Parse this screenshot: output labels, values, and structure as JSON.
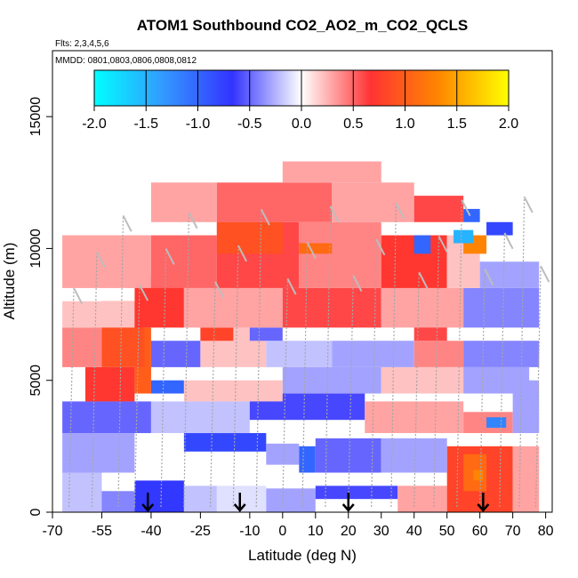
{
  "chart_data": {
    "type": "heatmap",
    "title": "ATOM1 Southbound CO2_AO2_m_CO2_QCLS",
    "flights_label": "Flts: 2,3,4,5,6",
    "dates_label": "MMDD: 0801,0803,0806,0808,0812",
    "xlabel": "Latitude (deg N)",
    "ylabel": "Altitude (m)",
    "xlim": [
      -70,
      82
    ],
    "ylim": [
      0,
      17500
    ],
    "x_ticks": [
      -70,
      -55,
      -40,
      -25,
      -10,
      0,
      10,
      20,
      30,
      40,
      50,
      60,
      70,
      80
    ],
    "y_ticks": [
      0,
      5000,
      10000,
      15000
    ],
    "colorbar": {
      "range": [
        -2.0,
        2.0
      ],
      "ticks": [
        "-2.0",
        "-1.5",
        "-1.0",
        "-0.5",
        "0.0",
        "0.5",
        "1.0",
        "1.5",
        "2.0"
      ],
      "stops": [
        "#00ffff",
        "#3399ff",
        "#3333ff",
        "#ffffff",
        "#ff3333",
        "#ff8800",
        "#ffff00"
      ]
    },
    "arrows_latitude": [
      -41,
      -13,
      20,
      61
    ],
    "cells": [
      {
        "lat": [
          -67,
          -55
        ],
        "alt": [
          0,
          1500
        ],
        "v": -0.2
      },
      {
        "lat": [
          -55,
          -45
        ],
        "alt": [
          0,
          800
        ],
        "v": -0.4
      },
      {
        "lat": [
          -45,
          -30
        ],
        "alt": [
          0,
          1200
        ],
        "v": -0.7
      },
      {
        "lat": [
          -30,
          -20
        ],
        "alt": [
          0,
          1000
        ],
        "v": -0.2
      },
      {
        "lat": [
          -20,
          -5
        ],
        "alt": [
          0,
          1000
        ],
        "v": -0.1
      },
      {
        "lat": [
          -5,
          10
        ],
        "alt": [
          0,
          900
        ],
        "v": -0.3
      },
      {
        "lat": [
          10,
          35
        ],
        "alt": [
          500,
          1000
        ],
        "v": -0.6
      },
      {
        "lat": [
          35,
          50
        ],
        "alt": [
          0,
          1000
        ],
        "v": 0.3
      },
      {
        "lat": [
          50,
          70
        ],
        "alt": [
          0,
          2500
        ],
        "v": 0.8
      },
      {
        "lat": [
          55,
          62
        ],
        "alt": [
          800,
          2200
        ],
        "v": 1.1
      },
      {
        "lat": [
          58,
          61
        ],
        "alt": [
          1200,
          1600
        ],
        "v": 1.3
      },
      {
        "lat": [
          70,
          78
        ],
        "alt": [
          0,
          2500
        ],
        "v": 0.3
      },
      {
        "lat": [
          -67,
          -45
        ],
        "alt": [
          1500,
          3000
        ],
        "v": -0.3
      },
      {
        "lat": [
          -30,
          -5
        ],
        "alt": [
          2300,
          3000
        ],
        "v": -0.8
      },
      {
        "lat": [
          -5,
          5
        ],
        "alt": [
          1800,
          2600
        ],
        "v": -0.3
      },
      {
        "lat": [
          5,
          10
        ],
        "alt": [
          1500,
          2500
        ],
        "v": -1.0
      },
      {
        "lat": [
          10,
          30
        ],
        "alt": [
          1500,
          2800
        ],
        "v": -0.5
      },
      {
        "lat": [
          30,
          50
        ],
        "alt": [
          1500,
          2800
        ],
        "v": -0.3
      },
      {
        "lat": [
          -67,
          -40
        ],
        "alt": [
          3000,
          4200
        ],
        "v": -0.5
      },
      {
        "lat": [
          -40,
          -10
        ],
        "alt": [
          3000,
          4200
        ],
        "v": -0.2
      },
      {
        "lat": [
          -10,
          25
        ],
        "alt": [
          3500,
          4500
        ],
        "v": -0.6
      },
      {
        "lat": [
          25,
          55
        ],
        "alt": [
          3000,
          4200
        ],
        "v": 0.3
      },
      {
        "lat": [
          55,
          70
        ],
        "alt": [
          3000,
          3800
        ],
        "v": 0.4
      },
      {
        "lat": [
          62,
          68
        ],
        "alt": [
          3200,
          3600
        ],
        "v": -1.2
      },
      {
        "lat": [
          70,
          78
        ],
        "alt": [
          3000,
          5000
        ],
        "v": -0.3
      },
      {
        "lat": [
          -60,
          -45
        ],
        "alt": [
          4200,
          5500
        ],
        "v": 0.7
      },
      {
        "lat": [
          -45,
          -40
        ],
        "alt": [
          4500,
          7000
        ],
        "v": 1.0
      },
      {
        "lat": [
          -40,
          -30
        ],
        "alt": [
          4500,
          5000
        ],
        "v": -1.0
      },
      {
        "lat": [
          -30,
          0
        ],
        "alt": [
          4200,
          5000
        ],
        "v": 0.2
      },
      {
        "lat": [
          0,
          30
        ],
        "alt": [
          4500,
          5500
        ],
        "v": -0.3
      },
      {
        "lat": [
          30,
          55
        ],
        "alt": [
          4500,
          5500
        ],
        "v": 0.2
      },
      {
        "lat": [
          55,
          75
        ],
        "alt": [
          4500,
          5500
        ],
        "v": -0.3
      },
      {
        "lat": [
          -67,
          -55
        ],
        "alt": [
          5500,
          7000
        ],
        "v": 0.4
      },
      {
        "lat": [
          -55,
          -42
        ],
        "alt": [
          5500,
          8000
        ],
        "v": 0.9
      },
      {
        "lat": [
          -40,
          -25
        ],
        "alt": [
          5500,
          6500
        ],
        "v": -0.5
      },
      {
        "lat": [
          -25,
          -5
        ],
        "alt": [
          5500,
          7000
        ],
        "v": 0.2
      },
      {
        "lat": [
          -5,
          15
        ],
        "alt": [
          5500,
          6500
        ],
        "v": -0.2
      },
      {
        "lat": [
          15,
          40
        ],
        "alt": [
          5500,
          6500
        ],
        "v": -0.3
      },
      {
        "lat": [
          40,
          55
        ],
        "alt": [
          5500,
          6500
        ],
        "v": 0.4
      },
      {
        "lat": [
          55,
          78
        ],
        "alt": [
          5500,
          6500
        ],
        "v": -0.4
      },
      {
        "lat": [
          -25,
          -15
        ],
        "alt": [
          6500,
          7000
        ],
        "v": 0.8
      },
      {
        "lat": [
          -10,
          0
        ],
        "alt": [
          6500,
          7000
        ],
        "v": -0.5
      },
      {
        "lat": [
          40,
          50
        ],
        "alt": [
          6500,
          7200
        ],
        "v": 0.6
      },
      {
        "lat": [
          -67,
          -45
        ],
        "alt": [
          7000,
          8000
        ],
        "v": 0.2
      },
      {
        "lat": [
          -45,
          -30
        ],
        "alt": [
          7000,
          9000
        ],
        "v": 0.7
      },
      {
        "lat": [
          -30,
          0
        ],
        "alt": [
          7000,
          8500
        ],
        "v": 0.3
      },
      {
        "lat": [
          0,
          30
        ],
        "alt": [
          7000,
          8500
        ],
        "v": 0.6
      },
      {
        "lat": [
          30,
          55
        ],
        "alt": [
          7000,
          8500
        ],
        "v": 0.3
      },
      {
        "lat": [
          55,
          78
        ],
        "alt": [
          7000,
          8500
        ],
        "v": -0.4
      },
      {
        "lat": [
          -67,
          -40
        ],
        "alt": [
          8500,
          10500
        ],
        "v": 0.3
      },
      {
        "lat": [
          -40,
          -20
        ],
        "alt": [
          8500,
          10500
        ],
        "v": 0.5
      },
      {
        "lat": [
          -20,
          5
        ],
        "alt": [
          8500,
          11000
        ],
        "v": 0.6
      },
      {
        "lat": [
          5,
          30
        ],
        "alt": [
          8500,
          11000
        ],
        "v": 0.4
      },
      {
        "lat": [
          30,
          50
        ],
        "alt": [
          8500,
          10500
        ],
        "v": 0.7
      },
      {
        "lat": [
          50,
          60
        ],
        "alt": [
          8500,
          10500
        ],
        "v": 0.2
      },
      {
        "lat": [
          60,
          78
        ],
        "alt": [
          8500,
          9500
        ],
        "v": -0.3
      },
      {
        "lat": [
          -20,
          0
        ],
        "alt": [
          9800,
          11000
        ],
        "v": 0.9
      },
      {
        "lat": [
          5,
          15
        ],
        "alt": [
          9800,
          10200
        ],
        "v": 1.1
      },
      {
        "lat": [
          40,
          45
        ],
        "alt": [
          9800,
          10500
        ],
        "v": -1.0
      },
      {
        "lat": [
          55,
          62
        ],
        "alt": [
          9800,
          10500
        ],
        "v": 1.3
      },
      {
        "lat": [
          52,
          58
        ],
        "alt": [
          10200,
          10700
        ],
        "v": -1.5
      },
      {
        "lat": [
          62,
          70
        ],
        "alt": [
          10500,
          11000
        ],
        "v": -0.8
      },
      {
        "lat": [
          -40,
          -20
        ],
        "alt": [
          11000,
          12500
        ],
        "v": 0.3
      },
      {
        "lat": [
          -20,
          15
        ],
        "alt": [
          11000,
          12500
        ],
        "v": 0.5
      },
      {
        "lat": [
          15,
          40
        ],
        "alt": [
          11000,
          12500
        ],
        "v": 0.3
      },
      {
        "lat": [
          40,
          55
        ],
        "alt": [
          11000,
          12000
        ],
        "v": 0.6
      },
      {
        "lat": [
          55,
          60
        ],
        "alt": [
          11000,
          11500
        ],
        "v": -1.0
      },
      {
        "lat": [
          0,
          30
        ],
        "alt": [
          12500,
          13300
        ],
        "v": 0.3
      }
    ]
  }
}
